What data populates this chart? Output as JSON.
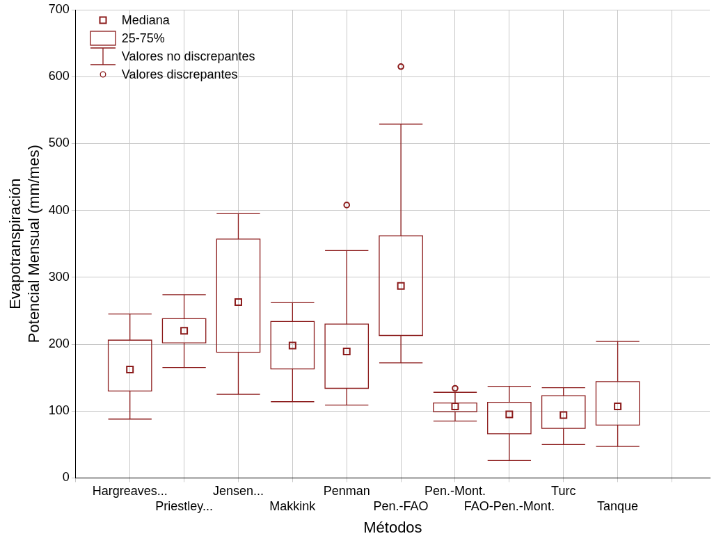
{
  "chart_data": {
    "type": "box",
    "xlabel": "Métodos",
    "ylabel": "Evapotranspiración Potencial Mensual (mm/mes)",
    "categories": [
      "Hargreaves...",
      "Priestley...",
      "Jensen...",
      "Makkink",
      "Penman",
      "Pen.-FAO",
      "Pen.-Mont.",
      "FAO-Pen.-Mont.",
      "Turc",
      "Tanque"
    ],
    "color": "#8b1a1a",
    "boxes": [
      {
        "low": 88,
        "q1": 130,
        "median": 162,
        "q3": 206,
        "high": 245
      },
      {
        "low": 165,
        "q1": 202,
        "median": 220,
        "q3": 238,
        "high": 274
      },
      {
        "low": 125,
        "q1": 188,
        "median": 263,
        "q3": 357,
        "high": 395
      },
      {
        "low": 114,
        "q1": 163,
        "median": 198,
        "q3": 234,
        "high": 262
      },
      {
        "low": 109,
        "q1": 134,
        "median": 189,
        "q3": 230,
        "high": 340,
        "outliers": [
          408
        ]
      },
      {
        "low": 172,
        "q1": 213,
        "median": 287,
        "q3": 362,
        "high": 529,
        "outliers": [
          615
        ]
      },
      {
        "low": 85,
        "q1": 99,
        "median": 107,
        "q3": 112,
        "high": 128,
        "outliers": [
          134
        ]
      },
      {
        "low": 26,
        "q1": 66,
        "median": 95,
        "q3": 113,
        "high": 137
      },
      {
        "low": 50,
        "q1": 74,
        "median": 94,
        "q3": 123,
        "high": 135
      },
      {
        "low": 47,
        "q1": 79,
        "median": 107,
        "q3": 144,
        "high": 204
      }
    ],
    "ylim": [
      0,
      700
    ],
    "yticks": [
      0,
      100,
      200,
      300,
      400,
      500,
      600,
      700
    ],
    "grid": true,
    "annotations": [
      "Mediana",
      "25-75%",
      "Valores no discrepantes",
      "Valores discrepantes"
    ]
  }
}
